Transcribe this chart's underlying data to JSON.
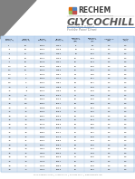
{
  "title_brand": "RECHEM",
  "title_product": "GLYCOCHILL",
  "title_sub": "Propylene Glycol",
  "title_chart": "Freeze Point Chart",
  "header_bg": "#c5d9f1",
  "row_bg_odd": "#dce6f1",
  "row_bg_even": "#ffffff",
  "logo_orange": "#e36c09",
  "logo_blue": "#4f81bd",
  "logo_green": "#9bbb59",
  "logo_red": "#c0504d",
  "tri_color": "#808080",
  "short_headers": [
    "Freezing\nPoint (°C)",
    "Freezing\nPoint (°F)",
    "Boiling\nPoint (°C)",
    "Boiling\nPoint (°F)",
    "Propylene\nGlycol %\n(w/w)",
    "Propylene\nGlycol %\n(v/v)",
    "Inhibitor %\n(w/w)",
    "Inhibitor\n(%v/v)"
  ],
  "rows": [
    [
      "-1",
      "30",
      "100.2",
      "212.4",
      "5",
      "5.1",
      "3.0",
      "3.0"
    ],
    [
      "-2",
      "29",
      "100.4",
      "212.8",
      "10",
      "10.1",
      "3.0",
      "3.0"
    ],
    [
      "-3",
      "27",
      "100.7",
      "213.2",
      "15",
      "15.2",
      "3.0",
      "3.0"
    ],
    [
      "-5",
      "23",
      "101.1",
      "214.0",
      "20",
      "20.3",
      "3.0",
      "3.0"
    ],
    [
      "-7",
      "20",
      "101.5",
      "214.7",
      "25",
      "25.4",
      "3.0",
      "3.0"
    ],
    [
      "-10",
      "14",
      "101.9",
      "215.4",
      "30",
      "30.5",
      "3.0",
      "3.0"
    ],
    [
      "-12",
      "10",
      "102.3",
      "216.2",
      "32",
      "32.5",
      "3.0",
      "3.0"
    ],
    [
      "-14",
      "7",
      "102.6",
      "216.7",
      "34",
      "34.6",
      "3.0",
      "3.0"
    ],
    [
      "-16",
      "3",
      "103.0",
      "217.4",
      "36",
      "36.7",
      "3.0",
      "3.0"
    ],
    [
      "-18",
      "0",
      "103.4",
      "218.1",
      "38",
      "38.7",
      "3.0",
      "3.0"
    ],
    [
      "-20",
      "-4",
      "103.8",
      "218.8",
      "40",
      "40.8",
      "3.0",
      "3.0"
    ],
    [
      "-22",
      "-8",
      "104.2",
      "219.6",
      "42",
      "42.8",
      "3.0",
      "3.0"
    ],
    [
      "-24",
      "-11",
      "104.6",
      "220.3",
      "44",
      "44.9",
      "3.0",
      "3.0"
    ],
    [
      "-26",
      "-15",
      "105.0",
      "221.0",
      "46",
      "46.9",
      "3.0",
      "3.0"
    ],
    [
      "-28",
      "-18",
      "105.4",
      "221.7",
      "48",
      "49.0",
      "3.0",
      "3.0"
    ],
    [
      "-30",
      "-22",
      "105.8",
      "222.5",
      "50",
      "51.1",
      "3.0",
      "3.0"
    ],
    [
      "-32",
      "-26",
      "106.3",
      "223.3",
      "52",
      "53.2",
      "3.0",
      "3.0"
    ],
    [
      "-34",
      "-29",
      "106.7",
      "224.0",
      "54",
      "55.3",
      "3.0",
      "3.0"
    ],
    [
      "-36",
      "-33",
      "107.1",
      "224.8",
      "56",
      "57.4",
      "3.0",
      "3.0"
    ],
    [
      "-38",
      "-36",
      "107.5",
      "225.5",
      "58",
      "59.5",
      "3.0",
      "3.0"
    ],
    [
      "-40",
      "-40",
      "107.9",
      "226.3",
      "60",
      "61.6",
      "3.0",
      "3.0"
    ],
    [
      "-42",
      "-44",
      "108.4",
      "227.1",
      "62",
      "63.7",
      "3.0",
      "3.0"
    ],
    [
      "-44",
      "-47",
      "108.8",
      "227.9",
      "64",
      "65.8",
      "3.0",
      "3.0"
    ],
    [
      "-46",
      "-51",
      "109.2",
      "228.6",
      "66",
      "67.9",
      "3.0",
      "3.0"
    ],
    [
      "-48",
      "-54",
      "109.7",
      "229.4",
      "68",
      "70.0",
      "3.0",
      "3.0"
    ],
    [
      "-50",
      "-58",
      "110.1",
      "230.2",
      "70",
      "72.2",
      "3.0",
      "3.0"
    ],
    [
      "-52",
      "-62",
      "110.6",
      "231.0",
      "72",
      "74.3",
      "3.0",
      "3.0"
    ],
    [
      "-54",
      "-65",
      "111.0",
      "231.8",
      "74",
      "76.5",
      "3.0",
      "3.0"
    ],
    [
      "-56",
      "-69",
      "111.5",
      "232.7",
      "76",
      "78.7",
      "3.0",
      "3.0"
    ],
    [
      "-58",
      "-72",
      "111.9",
      "233.5",
      "78",
      "80.9",
      "3.0",
      "3.0"
    ],
    [
      "-60",
      "-76",
      "112.4",
      "234.3",
      "80",
      "83.1",
      "3.0",
      "3.0"
    ]
  ],
  "footer": "4800 Globalway Drive  |  Knoxville, TN  |  866.855.4977  |  www.rechemtn.com"
}
